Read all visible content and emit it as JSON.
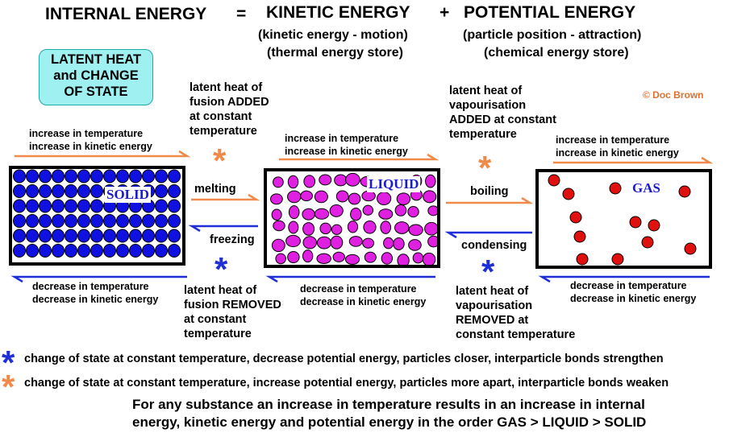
{
  "heading": {
    "internal": "INTERNAL ENERGY",
    "eq": "=",
    "kinetic": "KINETIC ENERGY",
    "plus": "+",
    "potential": "POTENTIAL ENERGY",
    "kinetic_sub1": "(kinetic energy - motion)",
    "kinetic_sub2": "(thermal energy store)",
    "potential_sub1": "(particle position - attraction)",
    "potential_sub2": "(chemical energy store)"
  },
  "badge": {
    "line1": "LATENT HEAT",
    "line2": "and CHANGE",
    "line3": "OF STATE"
  },
  "credit": "© Doc Brown",
  "states": {
    "solid": "SOLID",
    "liquid": "LIQUID",
    "gas": "GAS"
  },
  "arrows": {
    "increase_temp": "increase in temperature",
    "increase_ke": "increase in kinetic energy",
    "decrease_temp": "decrease in temperature",
    "decrease_ke": "decrease in kinetic energy",
    "melting": "melting",
    "freezing": "freezing",
    "boiling": "boiling",
    "condensing": "condensing"
  },
  "latent": {
    "fusion_added": [
      "latent heat of",
      "fusion ADDED",
      "at constant",
      "temperature"
    ],
    "fusion_removed": [
      "latent heat of",
      "fusion REMOVED",
      "at constant",
      "temperature"
    ],
    "vap_added": [
      "latent heat of",
      "vapourisation",
      "ADDED at constant",
      "temperature"
    ],
    "vap_removed": [
      "latent heat of",
      "vapourisation",
      "REMOVED at",
      "constant temperature"
    ]
  },
  "stars": {
    "symbol": "*"
  },
  "legend": {
    "blue": "change of state at constant temperature, decrease potential energy, particles closer, interparticle bonds strengthen",
    "orange": "change of state at constant temperature, increase potential energy, particles more apart, interparticle bonds weaken"
  },
  "footer": {
    "line1": "For any substance an increase in temperature results in an increase in internal",
    "line2": "energy, kinetic energy and potential energy in the order  GAS > LIQUID > SOLID"
  },
  "colors": {
    "orange": "#f08a4b",
    "blue": "#1f2fd8",
    "solid_particle": "#1010e0",
    "liquid_particle": "#e020e0",
    "gas_particle": "#e01010",
    "badge_bg": "#9ff0f0"
  }
}
